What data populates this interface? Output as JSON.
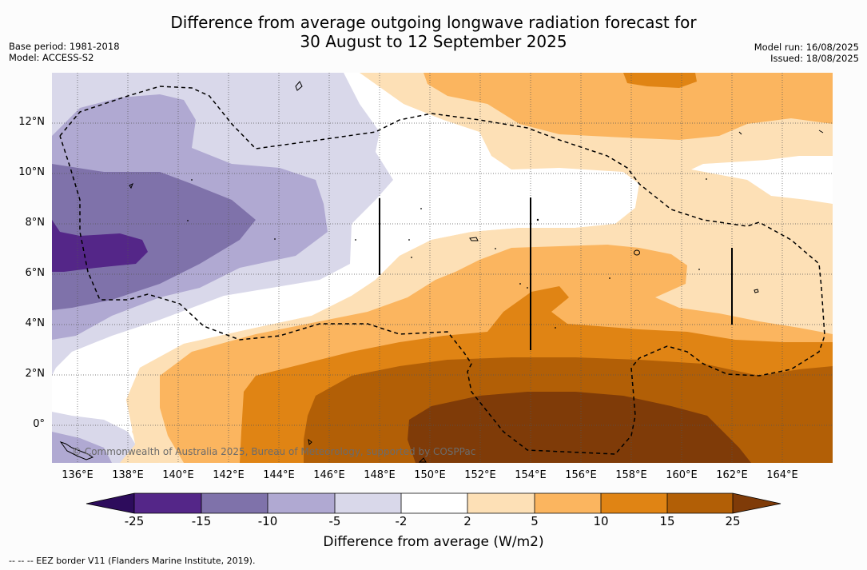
{
  "title_line1": "Difference from average outgoing longwave radiation forecast for",
  "title_line2": "30 August to 12 September 2025",
  "base_period": "Base period: 1981-2018",
  "model": "Model: ACCESS-S2",
  "model_run": "Model run: 16/08/2025",
  "issued": "Issued: 18/08/2025",
  "copyright": "© Commonwealth of Australia 2025, Bureau of Meteorology, supported by COSPPac",
  "lon_labels": [
    "136°E",
    "138°E",
    "140°E",
    "142°E",
    "144°E",
    "146°E",
    "148°E",
    "150°E",
    "152°E",
    "154°E",
    "156°E",
    "158°E",
    "160°E",
    "162°E",
    "164°E"
  ],
  "lat_labels": [
    "12°N",
    "10°N",
    "8°N",
    "6°N",
    "4°N",
    "2°N",
    "0°"
  ],
  "colorbar": {
    "title": "Difference from average (W/m2)",
    "ticks": [
      "-25",
      "-15",
      "-10",
      "-5",
      "-2",
      "2",
      "5",
      "10",
      "15",
      "25"
    ],
    "colors": {
      "below_-25": "#2d0c5c",
      "-25_-15": "#542688",
      "-15_-10": "#7f72aa",
      "-10_-5": "#b0a9d2",
      "-5_-2": "#d9d8ea",
      "-2_2": "#ffffff",
      "2_5": "#fde0b6",
      "5_10": "#fbb55f",
      "10_15": "#e08414",
      "15_25": "#b25f06",
      "above_25": "#7f3b08"
    }
  },
  "footnote": "--  --  -- EEZ border V11 (Flanders Marine Institute, 2019)."
}
